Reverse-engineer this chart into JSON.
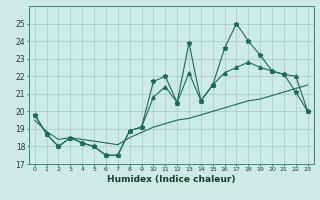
{
  "xlabel": "Humidex (Indice chaleur)",
  "background_color": "#ceeae4",
  "grid_color": "#aacec8",
  "line_color": "#1a6b5a",
  "x": [
    0,
    1,
    2,
    3,
    4,
    5,
    6,
    7,
    8,
    9,
    10,
    11,
    12,
    13,
    14,
    15,
    16,
    17,
    18,
    19,
    20,
    21,
    22,
    23
  ],
  "series1": [
    19.8,
    18.7,
    18.0,
    18.5,
    18.2,
    18.0,
    17.5,
    17.5,
    18.9,
    19.1,
    21.7,
    22.0,
    20.5,
    23.9,
    20.6,
    21.5,
    23.6,
    25.0,
    24.0,
    23.2,
    22.3,
    22.1,
    21.1,
    20.0
  ],
  "series2": [
    19.8,
    18.7,
    18.0,
    18.5,
    18.2,
    18.0,
    17.5,
    17.5,
    18.9,
    19.1,
    20.8,
    21.4,
    20.5,
    22.2,
    20.6,
    21.5,
    22.2,
    22.5,
    22.8,
    22.5,
    22.3,
    22.1,
    22.0,
    20.0
  ],
  "series3": [
    19.5,
    18.85,
    18.4,
    18.5,
    18.4,
    18.3,
    18.2,
    18.1,
    18.5,
    18.8,
    19.1,
    19.3,
    19.5,
    19.6,
    19.8,
    20.0,
    20.2,
    20.4,
    20.6,
    20.7,
    20.9,
    21.1,
    21.3,
    21.5
  ],
  "ylim": [
    17,
    26
  ],
  "xlim": [
    -0.5,
    23.5
  ],
  "yticks": [
    17,
    18,
    19,
    20,
    21,
    22,
    23,
    24,
    25
  ],
  "xticks": [
    0,
    1,
    2,
    3,
    4,
    5,
    6,
    7,
    8,
    9,
    10,
    11,
    12,
    13,
    14,
    15,
    16,
    17,
    18,
    19,
    20,
    21,
    22,
    23
  ]
}
